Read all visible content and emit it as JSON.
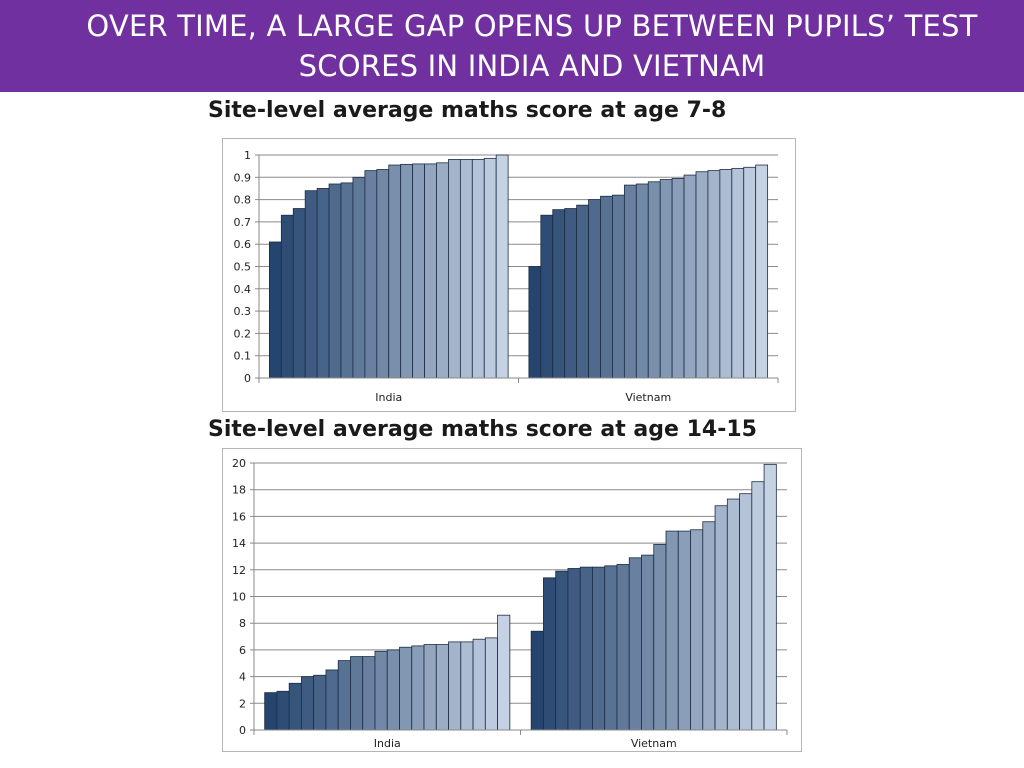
{
  "header": {
    "title_line1": "OVER TIME, A LARGE GAP OPENS UP BETWEEN PUPILS’ TEST",
    "title_line2": "SCORES IN INDIA AND VIETNAM",
    "color": "#7030a0"
  },
  "chart_data": [
    {
      "type": "bar",
      "title": "Site-level average maths score at age 7-8",
      "xlabel": "",
      "ylabel": "",
      "ylim": [
        0,
        1
      ],
      "yticks": [
        0,
        0.1,
        0.2,
        0.3,
        0.4,
        0.5,
        0.6,
        0.7,
        0.8,
        0.9,
        1
      ],
      "ytick_labels": [
        "0",
        "0.1",
        "0.2",
        "0.3",
        "0.4",
        "0.5",
        "0.6",
        "0.7",
        "0.8",
        "0.9",
        "1"
      ],
      "grid": true,
      "legend": "none",
      "color_dark": "#26456e",
      "color_light": "#c5d2e4",
      "groups": [
        {
          "name": "India",
          "values": [
            0.61,
            0.73,
            0.76,
            0.84,
            0.85,
            0.87,
            0.875,
            0.9,
            0.93,
            0.935,
            0.955,
            0.958,
            0.96,
            0.96,
            0.965,
            0.98,
            0.98,
            0.98,
            0.985,
            1.0
          ]
        },
        {
          "name": "Vietnam",
          "values": [
            0.5,
            0.73,
            0.755,
            0.76,
            0.775,
            0.8,
            0.815,
            0.82,
            0.865,
            0.87,
            0.88,
            0.89,
            0.895,
            0.91,
            0.925,
            0.93,
            0.935,
            0.94,
            0.945,
            0.955
          ]
        }
      ]
    },
    {
      "type": "bar",
      "title": "Site-level average maths score at age 14-15",
      "xlabel": "",
      "ylabel": "",
      "ylim": [
        0,
        20
      ],
      "yticks": [
        0,
        2,
        4,
        6,
        8,
        10,
        12,
        14,
        16,
        18,
        20
      ],
      "ytick_labels": [
        "0",
        "2",
        "4",
        "6",
        "8",
        "10",
        "12",
        "14",
        "16",
        "18",
        "20"
      ],
      "grid": true,
      "legend": "none",
      "color_dark": "#26456e",
      "color_light": "#c5d2e4",
      "groups": [
        {
          "name": "India",
          "values": [
            2.8,
            2.9,
            3.5,
            4.0,
            4.1,
            4.5,
            5.2,
            5.5,
            5.5,
            5.9,
            6.0,
            6.2,
            6.3,
            6.4,
            6.4,
            6.6,
            6.6,
            6.8,
            6.9,
            8.6
          ]
        },
        {
          "name": "Vietnam",
          "values": [
            7.4,
            11.4,
            11.9,
            12.1,
            12.2,
            12.2,
            12.3,
            12.4,
            12.9,
            13.1,
            13.9,
            14.9,
            14.9,
            15.0,
            15.6,
            16.8,
            17.3,
            17.7,
            18.6,
            19.9
          ]
        }
      ]
    }
  ]
}
